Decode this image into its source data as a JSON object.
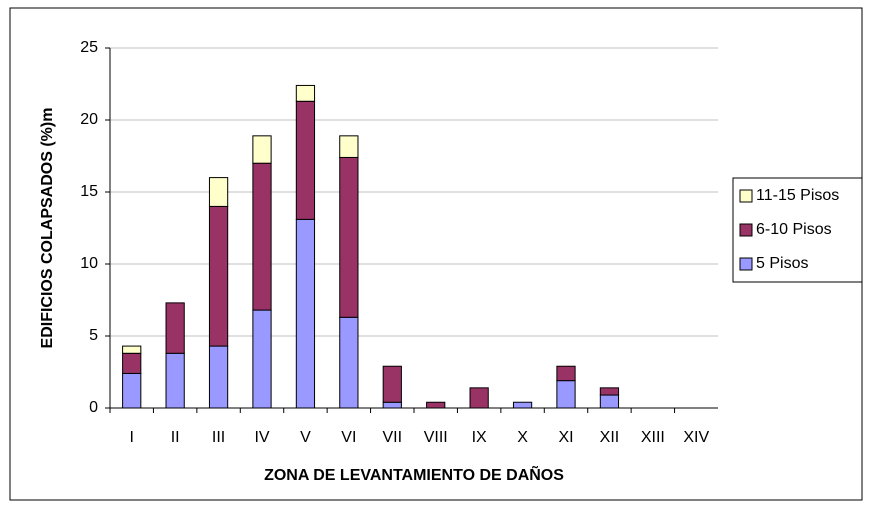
{
  "chart_data": {
    "type": "stacked_bar",
    "xlabel": "ZONA DE LEVANTAMIENTO DE DAÑOS",
    "ylabel": "EDIFICIOS COLAPSADOS (%)m",
    "categories": [
      "I",
      "II",
      "III",
      "IV",
      "V",
      "VI",
      "VII",
      "VIII",
      "IX",
      "X",
      "XI",
      "XII",
      "XIII",
      "XIV"
    ],
    "series": [
      {
        "name": "5 Pisos",
        "color": "#9999ff",
        "values": [
          2.4,
          3.8,
          4.3,
          6.8,
          13.1,
          6.3,
          0.4,
          0,
          0,
          0.4,
          1.9,
          0.9,
          0,
          0
        ]
      },
      {
        "name": "6-10 Pisos",
        "color": "#993366",
        "values": [
          1.4,
          3.5,
          9.7,
          10.2,
          8.2,
          11.1,
          2.5,
          0.4,
          1.4,
          0,
          1.0,
          0.5,
          0,
          0
        ]
      },
      {
        "name": "11-15 Pisos",
        "color": "#ffffcc",
        "values": [
          0.5,
          0,
          2.0,
          1.9,
          1.1,
          1.5,
          0,
          0,
          0,
          0,
          0,
          0,
          0,
          0
        ]
      }
    ],
    "ylim": [
      0,
      25
    ],
    "yticks": [
      0,
      5,
      10,
      15,
      20,
      25
    ],
    "grid": true,
    "legend": "right"
  }
}
